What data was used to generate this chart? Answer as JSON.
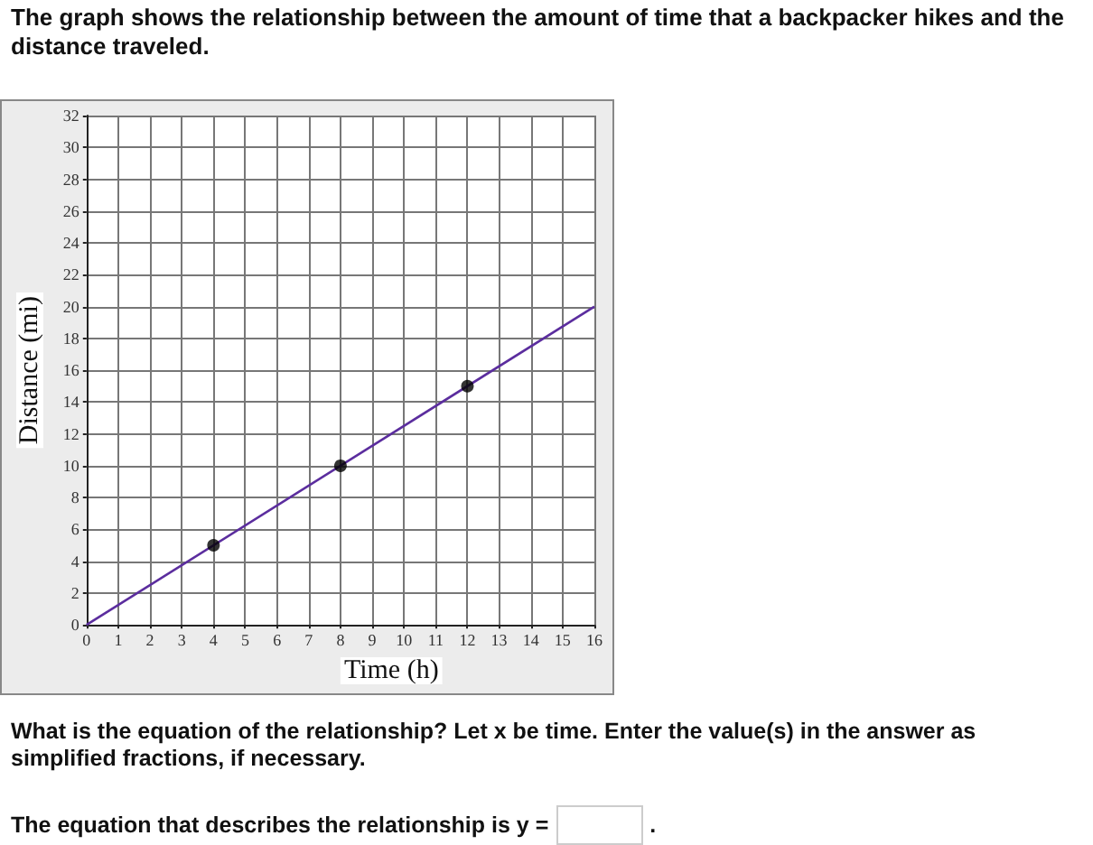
{
  "chart_data": {
    "type": "line",
    "title": "The graph shows the relationship between the amount of time that a backpacker hikes and the distance traveled.",
    "xlabel": "Time (h)",
    "ylabel": "Distance (mi)",
    "series": [
      {
        "type": "line",
        "x": [
          0,
          16
        ],
        "values": [
          0,
          20
        ],
        "color": "#5b2d9e",
        "marker": "none",
        "line_style": "solid"
      },
      {
        "type": "scatter",
        "x": [
          4,
          8,
          12
        ],
        "values": [
          5,
          10,
          15
        ],
        "color": "#000000",
        "marker": "circle"
      }
    ],
    "xlim": [
      0,
      16
    ],
    "xticks": [
      0,
      1,
      2,
      3,
      4,
      5,
      6,
      7,
      8,
      9,
      10,
      11,
      12,
      13,
      14,
      15,
      16
    ],
    "ylim": [
      0,
      32
    ],
    "yticks": [
      0,
      2,
      4,
      6,
      8,
      10,
      12,
      14,
      16,
      18,
      20,
      22,
      24,
      26,
      28,
      30,
      32
    ],
    "grid": true,
    "annotations": [
      "What is the equation of the relationship? Let x be time. Enter the value(s) in the answer as simplified fractions, if necessary.",
      "The equation that describes the relationship is y =",
      "."
    ]
  }
}
